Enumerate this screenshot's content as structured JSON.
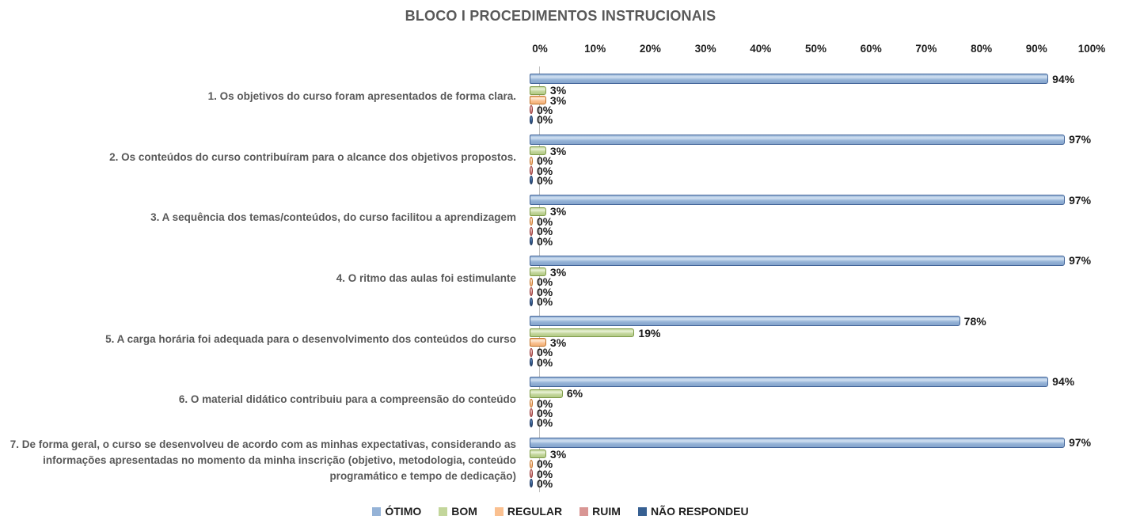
{
  "title": "BLOCO I PROCEDIMENTOS INSTRUCIONAIS",
  "chart_data": {
    "type": "bar",
    "orientation": "horizontal",
    "title": "BLOCO I PROCEDIMENTOS INSTRUCIONAIS",
    "categories": [
      "1. Os objetivos do curso foram apresentados de forma clara.",
      "2. Os conteúdos do curso contribuíram para o alcance dos objetivos propostos.",
      "3. A sequência dos temas/conteúdos, do curso facilitou a aprendizagem",
      "4. O ritmo das aulas foi estimulante",
      "5. A carga horária foi adequada para o desenvolvimento dos conteúdos do curso",
      "6. O material didático contribuiu para a compreensão do conteúdo",
      "7. De forma geral, o curso se desenvolveu de acordo com as minhas expectativas, considerando as informações apresentadas no momento da minha inscrição (objetivo, metodologia, conteúdo programático e tempo de dedicação)"
    ],
    "series": [
      {
        "name": "ÓTIMO",
        "color": "#95B3D7",
        "border": "#44669A",
        "highlight": "#D3E2F2",
        "shade": "#84A3CB",
        "values": [
          94,
          97,
          97,
          97,
          78,
          94,
          97
        ]
      },
      {
        "name": "BOM",
        "color": "#C3D69B",
        "border": "#7E9B48",
        "highlight": "#EAF2D8",
        "shade": "#B2C985",
        "values": [
          3,
          3,
          3,
          3,
          19,
          6,
          3
        ]
      },
      {
        "name": "REGULAR",
        "color": "#FAC090",
        "border": "#C0732B",
        "highlight": "#FDE9D4",
        "shade": "#F2B077",
        "values": [
          3,
          0,
          0,
          0,
          3,
          0,
          0
        ]
      },
      {
        "name": "RUIM",
        "color": "#D99694",
        "border": "#943634",
        "highlight": "#EBC2C1",
        "shade": "#B05B59",
        "values": [
          0,
          0,
          0,
          0,
          0,
          0,
          0
        ]
      },
      {
        "name": "NÃO RESPONDEU",
        "color": "#376092",
        "border": "#1F3864",
        "highlight": "#5B84B5",
        "shade": "#254061",
        "values": [
          0,
          0,
          0,
          0,
          0,
          0,
          0
        ]
      }
    ],
    "value_suffix": "%",
    "xlim": [
      0,
      100
    ],
    "x_ticks": [
      "0%",
      "10%",
      "20%",
      "30%",
      "40%",
      "50%",
      "60%",
      "70%",
      "80%",
      "90%",
      "100%"
    ],
    "grid": false,
    "legend_position": "bottom",
    "axis_line_color": "#BFBFBF"
  }
}
